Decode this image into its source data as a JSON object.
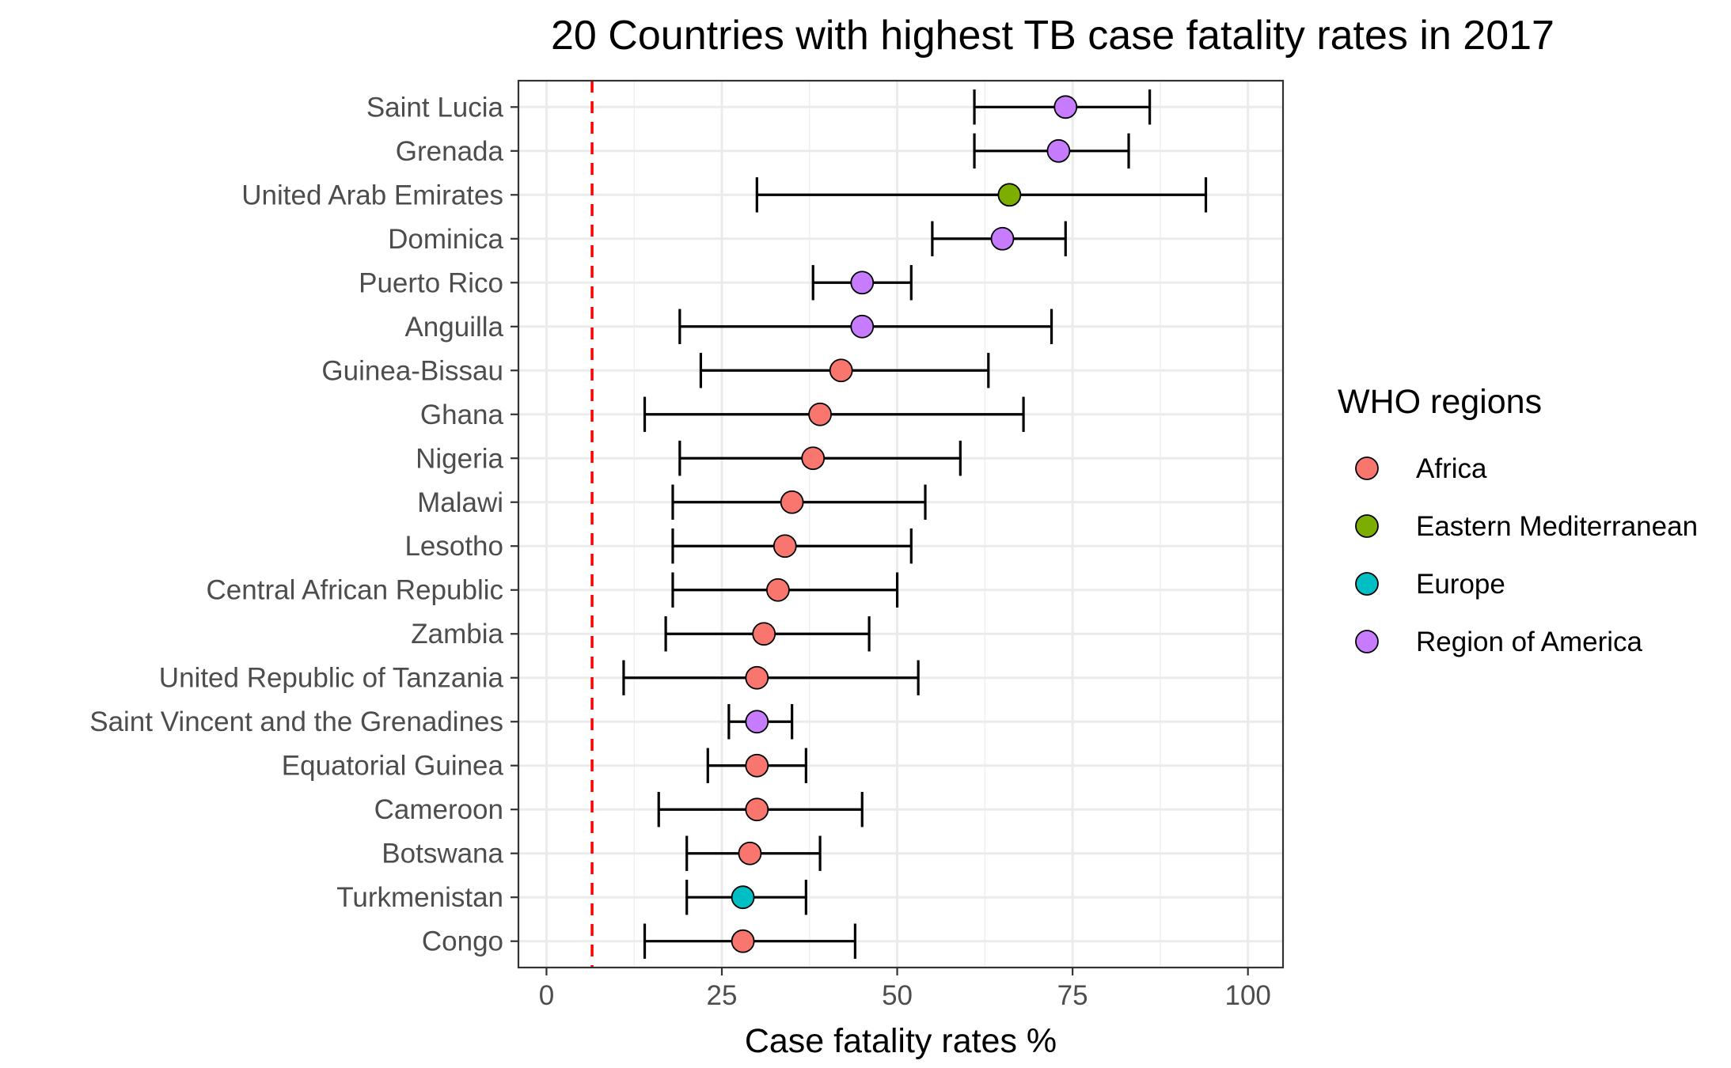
{
  "chart_data": {
    "type": "scatter",
    "title": "20 Countries with highest TB case fatality rates in 2017",
    "xlabel": "Case fatality rates %",
    "ylabel": "",
    "xlim": [
      -4,
      105
    ],
    "xticks": [
      0,
      25,
      50,
      75,
      100
    ],
    "xtick_labels": [
      "0",
      "25",
      "50",
      "75",
      "100"
    ],
    "grid": true,
    "reference_line": {
      "x": 6.5,
      "style": "dashed",
      "color": "#ff0000"
    },
    "legend": {
      "title": "WHO regions",
      "placement": "right",
      "entries": [
        {
          "name": "Africa",
          "color": "#F8766D"
        },
        {
          "name": "Eastern Mediterranean",
          "color": "#7CAE00"
        },
        {
          "name": "Europe",
          "color": "#00BFC4"
        },
        {
          "name": "Region of America",
          "color": "#C77CFF"
        }
      ]
    },
    "points": [
      {
        "country": "Saint Lucia",
        "region": "Region of America",
        "value": 74,
        "lower": 61,
        "upper": 86
      },
      {
        "country": "Grenada",
        "region": "Region of America",
        "value": 73,
        "lower": 61,
        "upper": 83
      },
      {
        "country": "United Arab Emirates",
        "region": "Eastern Mediterranean",
        "value": 66,
        "lower": 30,
        "upper": 94
      },
      {
        "country": "Dominica",
        "region": "Region of America",
        "value": 65,
        "lower": 55,
        "upper": 74
      },
      {
        "country": "Puerto Rico",
        "region": "Region of America",
        "value": 45,
        "lower": 38,
        "upper": 52
      },
      {
        "country": "Anguilla",
        "region": "Region of America",
        "value": 45,
        "lower": 19,
        "upper": 72
      },
      {
        "country": "Guinea-Bissau",
        "region": "Africa",
        "value": 42,
        "lower": 22,
        "upper": 63
      },
      {
        "country": "Ghana",
        "region": "Africa",
        "value": 39,
        "lower": 14,
        "upper": 68
      },
      {
        "country": "Nigeria",
        "region": "Africa",
        "value": 38,
        "lower": 19,
        "upper": 59
      },
      {
        "country": "Malawi",
        "region": "Africa",
        "value": 35,
        "lower": 18,
        "upper": 54
      },
      {
        "country": "Lesotho",
        "region": "Africa",
        "value": 34,
        "lower": 18,
        "upper": 52
      },
      {
        "country": "Central African Republic",
        "region": "Africa",
        "value": 33,
        "lower": 18,
        "upper": 50
      },
      {
        "country": "Zambia",
        "region": "Africa",
        "value": 31,
        "lower": 17,
        "upper": 46
      },
      {
        "country": "United Republic of Tanzania",
        "region": "Africa",
        "value": 30,
        "lower": 11,
        "upper": 53
      },
      {
        "country": "Saint Vincent and the Grenadines",
        "region": "Region of America",
        "value": 30,
        "lower": 26,
        "upper": 35
      },
      {
        "country": "Equatorial Guinea",
        "region": "Africa",
        "value": 30,
        "lower": 23,
        "upper": 37
      },
      {
        "country": "Cameroon",
        "region": "Africa",
        "value": 30,
        "lower": 16,
        "upper": 45
      },
      {
        "country": "Botswana",
        "region": "Africa",
        "value": 29,
        "lower": 20,
        "upper": 39
      },
      {
        "country": "Turkmenistan",
        "region": "Europe",
        "value": 28,
        "lower": 20,
        "upper": 37
      },
      {
        "country": "Congo",
        "region": "Africa",
        "value": 28,
        "lower": 14,
        "upper": 44
      }
    ]
  }
}
